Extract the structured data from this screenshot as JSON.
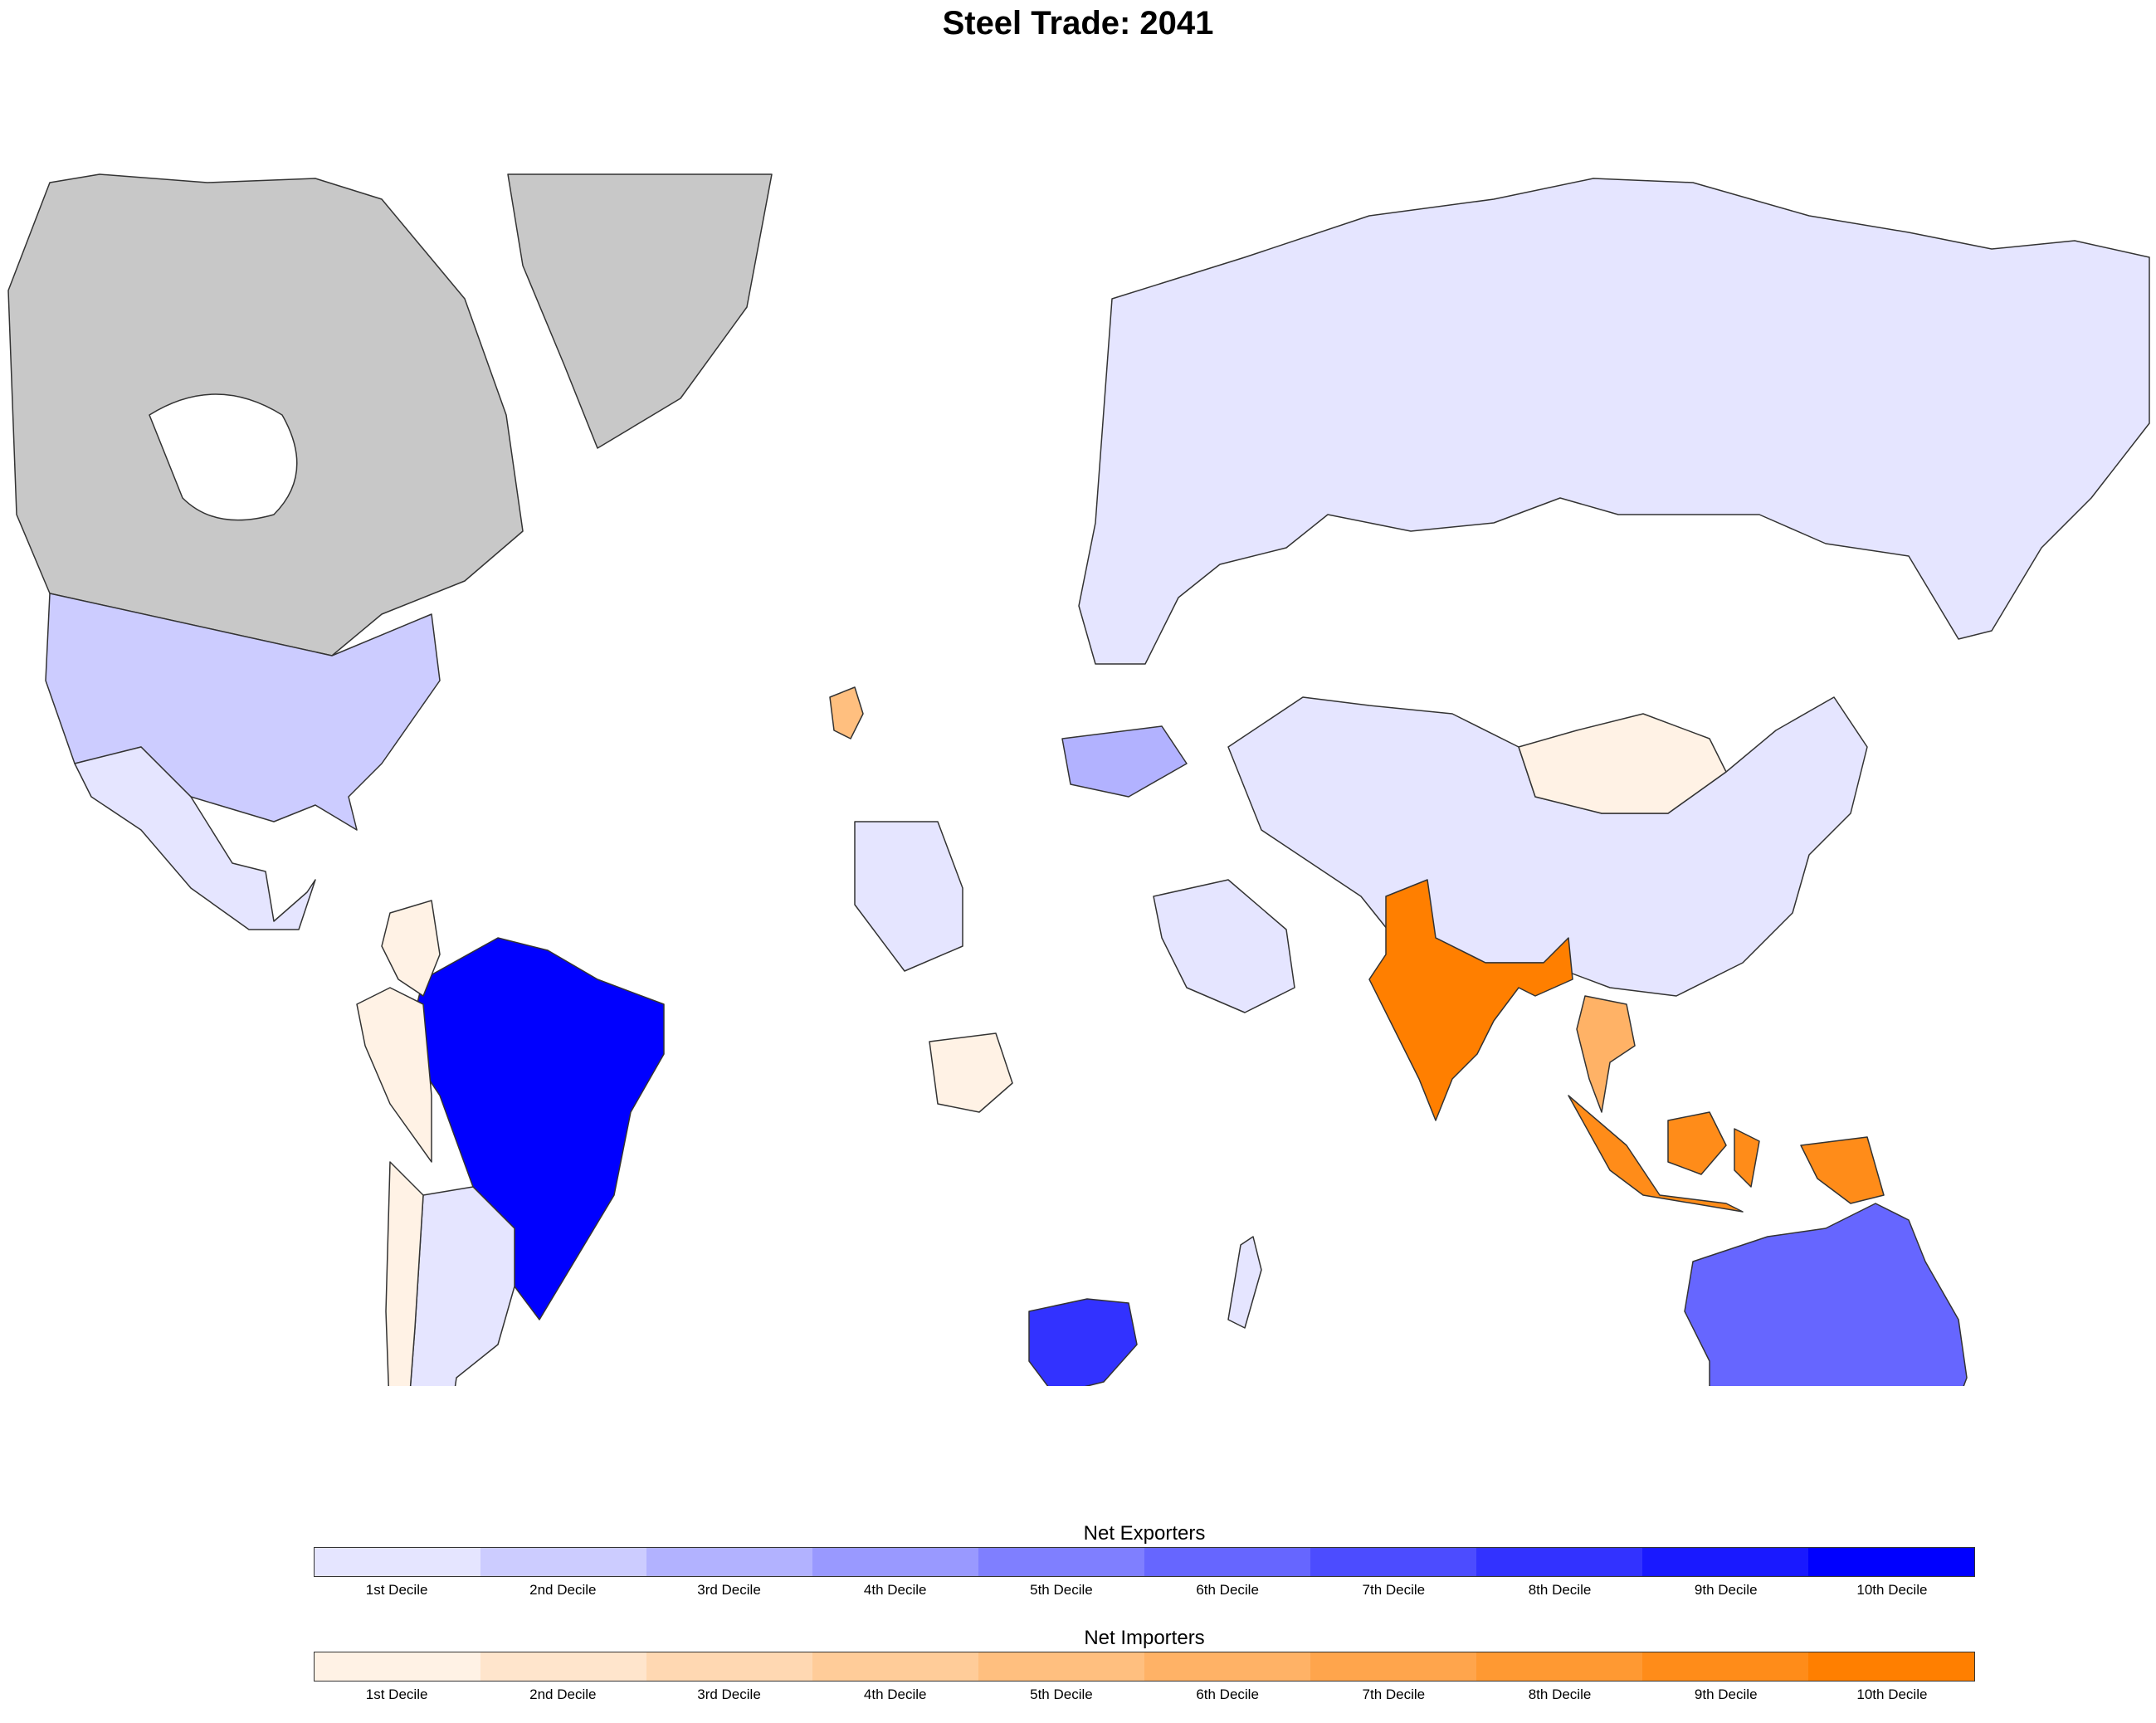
{
  "title": "Steel Trade: 2041",
  "colors": {
    "no_data": "#c8c8c8",
    "ocean": "#ffffff",
    "border": "#333333"
  },
  "map_data": {
    "type": "choropleth",
    "regions": [
      {
        "name": "Canada",
        "group": "none",
        "decile": 0
      },
      {
        "name": "Greenland",
        "group": "none",
        "decile": 0
      },
      {
        "name": "United States",
        "group": "exporters",
        "decile": 2
      },
      {
        "name": "Mexico",
        "group": "exporters",
        "decile": 1
      },
      {
        "name": "Brazil",
        "group": "exporters",
        "decile": 10
      },
      {
        "name": "Peru",
        "group": "importers",
        "decile": 1
      },
      {
        "name": "Colombia",
        "group": "importers",
        "decile": 1
      },
      {
        "name": "Argentina",
        "group": "exporters",
        "decile": 1
      },
      {
        "name": "Chile",
        "group": "importers",
        "decile": 1
      },
      {
        "name": "Russia",
        "group": "exporters",
        "decile": 1
      },
      {
        "name": "China",
        "group": "exporters",
        "decile": 1
      },
      {
        "name": "Mongolia",
        "group": "importers",
        "decile": 1
      },
      {
        "name": "India",
        "group": "importers",
        "decile": 10
      },
      {
        "name": "Indonesia",
        "group": "importers",
        "decile": 9
      },
      {
        "name": "Thailand",
        "group": "importers",
        "decile": 6
      },
      {
        "name": "Australia",
        "group": "exporters",
        "decile": 6
      },
      {
        "name": "New Zealand",
        "group": "exporters",
        "decile": 1
      },
      {
        "name": "South Africa",
        "group": "exporters",
        "decile": 8
      },
      {
        "name": "Ukraine",
        "group": "exporters",
        "decile": 3
      },
      {
        "name": "Ireland",
        "group": "importers",
        "decile": 5
      },
      {
        "name": "Saudi Arabia",
        "group": "exporters",
        "decile": 1
      },
      {
        "name": "Madagascar",
        "group": "exporters",
        "decile": 1
      },
      {
        "name": "Algeria",
        "group": "exporters",
        "decile": 1
      },
      {
        "name": "Nigeria",
        "group": "importers",
        "decile": 1
      }
    ]
  },
  "legends": {
    "exporters": {
      "title": "Net Exporters",
      "colors": [
        "#e5e5ff",
        "#ccccff",
        "#b2b2ff",
        "#9999ff",
        "#7f7fff",
        "#6666ff",
        "#4c4cff",
        "#3232ff",
        "#1919ff",
        "#0000ff"
      ],
      "labels": [
        "1st Decile",
        "2nd Decile",
        "3rd Decile",
        "4th Decile",
        "5th Decile",
        "6th Decile",
        "7th Decile",
        "8th Decile",
        "9th Decile",
        "10th Decile"
      ]
    },
    "importers": {
      "title": "Net Importers",
      "colors": [
        "#fff2e5",
        "#ffe5cc",
        "#ffd8b2",
        "#ffcc99",
        "#ffbf7f",
        "#ffb266",
        "#ffa54c",
        "#ff9932",
        "#ff8c19",
        "#ff7f00"
      ],
      "labels": [
        "1st Decile",
        "2nd Decile",
        "3rd Decile",
        "4th Decile",
        "5th Decile",
        "6th Decile",
        "7th Decile",
        "8th Decile",
        "9th Decile",
        "10th Decile"
      ]
    }
  }
}
